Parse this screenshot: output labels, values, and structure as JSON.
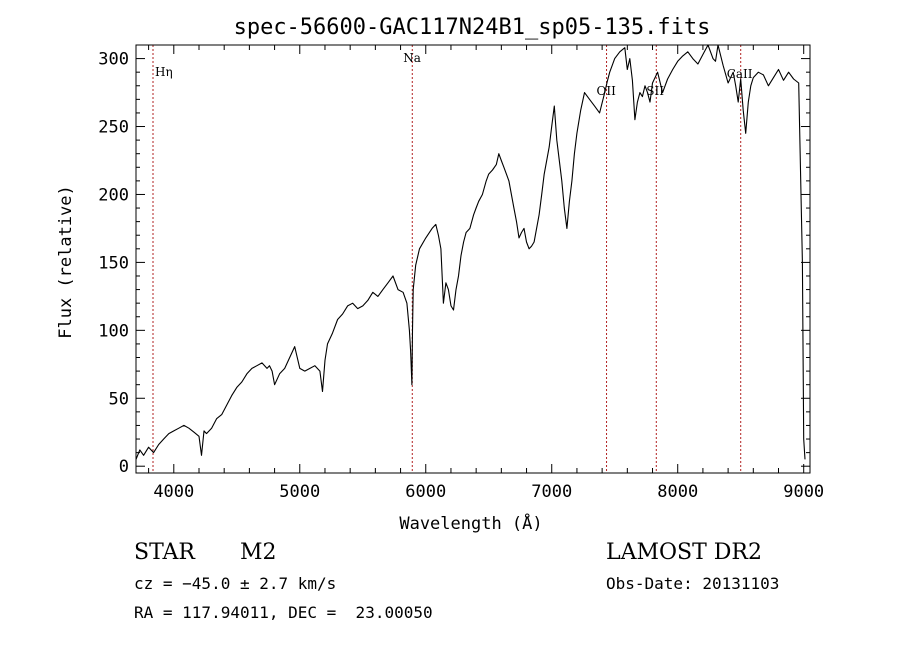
{
  "chart_data": {
    "type": "line",
    "title": "spec-56600-GAC117N24B1_sp05-135.fits",
    "xlabel": "Wavelength (Å)",
    "ylabel": "Flux (relative)",
    "xlim": [
      3700,
      9050
    ],
    "ylim": [
      -5,
      310
    ],
    "x_ticks": [
      4000,
      5000,
      6000,
      7000,
      8000,
      9000
    ],
    "y_ticks": [
      0,
      50,
      100,
      150,
      200,
      250,
      300
    ],
    "line_color": "#000000",
    "marker_color": "#b22222",
    "grid": false,
    "lines": [
      {
        "label": "Hη",
        "wavelength": 3835
      },
      {
        "label": "Na",
        "wavelength": 5893
      },
      {
        "label": "OII",
        "wavelength": 7435
      },
      {
        "label": "SII",
        "wavelength": 7830
      },
      {
        "label": "CaII",
        "wavelength": 8500
      }
    ],
    "series": [
      {
        "x": [
          3700,
          3730,
          3760,
          3800,
          3840,
          3880,
          3920,
          3960,
          4000,
          4040,
          4080,
          4120,
          4160,
          4200,
          4220,
          4240,
          4260,
          4300,
          4340,
          4380,
          4420,
          4460,
          4500,
          4540,
          4580,
          4620,
          4660,
          4700,
          4740,
          4760,
          4780,
          4800,
          4840,
          4880,
          4920,
          4960,
          5000,
          5040,
          5080,
          5120,
          5160,
          5180,
          5200,
          5220,
          5260,
          5300,
          5340,
          5380,
          5420,
          5460,
          5500,
          5540,
          5580,
          5620,
          5660,
          5700,
          5740,
          5780,
          5820,
          5850,
          5870,
          5880,
          5890,
          5895,
          5900,
          5920,
          5950,
          6000,
          6050,
          6080,
          6100,
          6120,
          6140,
          6160,
          6180,
          6200,
          6220,
          6240,
          6260,
          6280,
          6300,
          6320,
          6350,
          6380,
          6400,
          6420,
          6450,
          6480,
          6500,
          6530,
          6560,
          6580,
          6600,
          6620,
          6640,
          6660,
          6680,
          6700,
          6720,
          6740,
          6760,
          6780,
          6800,
          6820,
          6840,
          6860,
          6880,
          6900,
          6920,
          6940,
          6960,
          6980,
          7000,
          7020,
          7040,
          7060,
          7080,
          7100,
          7120,
          7140,
          7160,
          7180,
          7200,
          7230,
          7260,
          7300,
          7340,
          7380,
          7420,
          7440,
          7460,
          7480,
          7500,
          7540,
          7580,
          7600,
          7620,
          7640,
          7660,
          7680,
          7700,
          7720,
          7740,
          7760,
          7780,
          7800,
          7840,
          7880,
          7920,
          7960,
          8000,
          8040,
          8080,
          8120,
          8160,
          8200,
          8240,
          8280,
          8300,
          8320,
          8360,
          8400,
          8440,
          8460,
          8480,
          8500,
          8520,
          8540,
          8560,
          8580,
          8600,
          8640,
          8680,
          8720,
          8760,
          8800,
          8840,
          8880,
          8920,
          8960,
          8990,
          9000,
          9010
        ],
        "y": [
          5,
          12,
          8,
          14,
          10,
          16,
          20,
          24,
          26,
          28,
          30,
          28,
          25,
          22,
          8,
          26,
          24,
          28,
          35,
          38,
          45,
          52,
          58,
          62,
          68,
          72,
          74,
          76,
          72,
          74,
          70,
          60,
          68,
          72,
          80,
          88,
          72,
          70,
          72,
          74,
          70,
          55,
          78,
          90,
          98,
          108,
          112,
          118,
          120,
          116,
          118,
          122,
          128,
          125,
          130,
          135,
          140,
          130,
          128,
          120,
          100,
          85,
          60,
          100,
          130,
          148,
          160,
          168,
          175,
          178,
          170,
          160,
          120,
          135,
          130,
          118,
          115,
          130,
          140,
          155,
          165,
          172,
          175,
          185,
          190,
          195,
          200,
          210,
          215,
          218,
          222,
          230,
          225,
          220,
          215,
          210,
          200,
          190,
          180,
          168,
          172,
          175,
          165,
          160,
          162,
          165,
          175,
          185,
          200,
          215,
          225,
          235,
          250,
          265,
          240,
          225,
          210,
          190,
          175,
          195,
          210,
          230,
          245,
          262,
          275,
          270,
          265,
          260,
          275,
          283,
          290,
          295,
          300,
          305,
          308,
          292,
          300,
          284,
          255,
          268,
          275,
          272,
          280,
          275,
          268,
          282,
          290,
          275,
          285,
          292,
          298,
          302,
          305,
          300,
          296,
          303,
          310,
          300,
          298,
          310,
          295,
          282,
          290,
          280,
          268,
          285,
          262,
          245,
          268,
          280,
          286,
          290,
          288,
          280,
          286,
          292,
          284,
          290,
          285,
          282,
          150,
          20,
          5
        ]
      }
    ]
  },
  "footer": {
    "object_class": "STAR",
    "subclass": "M2",
    "survey": "LAMOST DR2",
    "cz": "cz = −45.0 ± 2.7 km/s",
    "obs_date": "Obs-Date: 20131103",
    "coords": "RA = 117.94011, DEC =  23.00050"
  }
}
